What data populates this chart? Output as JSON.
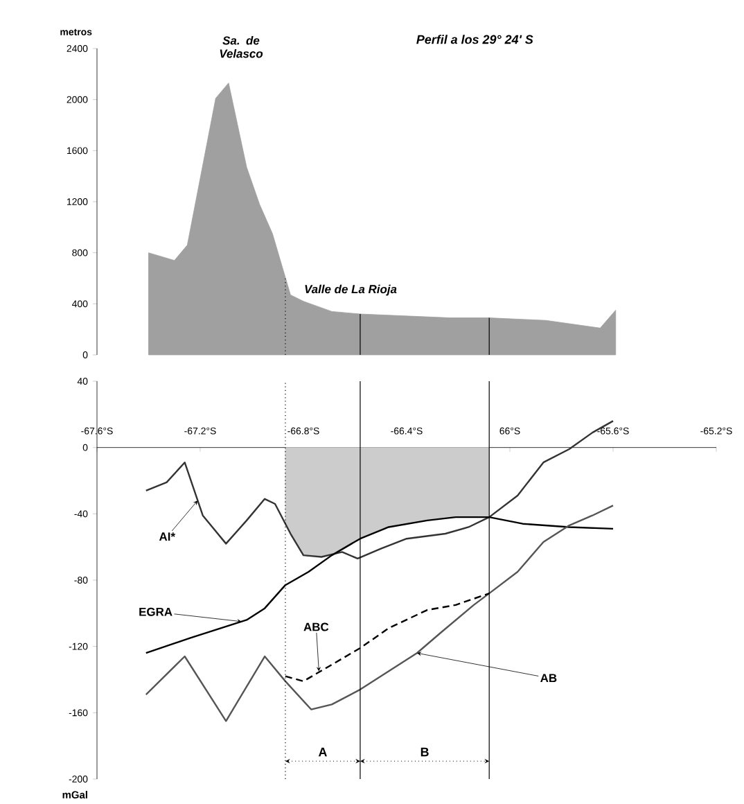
{
  "chart_data": [
    {
      "type": "area",
      "title": "Perfil a los 29° 24' S",
      "ylabel": "metros",
      "x": [
        -67.4,
        -67.3,
        -67.25,
        -67.14,
        -67.09,
        -67.02,
        -66.97,
        -66.92,
        -66.85,
        -66.8,
        -66.69,
        -66.58,
        -66.23,
        -66.08,
        -65.86,
        -65.65,
        -65.59
      ],
      "values": [
        800,
        740,
        860,
        2010,
        2130,
        1470,
        1180,
        950,
        470,
        420,
        340,
        320,
        290,
        290,
        270,
        210,
        350
      ],
      "color": "#a0a0a0",
      "xlim": [
        -67.6,
        -65.2
      ],
      "ylim": [
        0,
        2400
      ],
      "yticks": [
        0,
        400,
        800,
        1200,
        1600,
        2000,
        2400
      ],
      "tick_labels": "y",
      "annotations": [
        {
          "text": "Sa. de Velasco",
          "x": -67.09,
          "y": 2130
        },
        {
          "text": "Valle de La Rioja",
          "x": -66.8,
          "y": 420
        }
      ],
      "ref_lines": [
        {
          "axis": "x",
          "value": -66.87,
          "line_style": "dotted"
        },
        {
          "axis": "x",
          "value": -66.58,
          "line_style": "solid"
        },
        {
          "axis": "x",
          "value": -66.08,
          "line_style": "solid"
        }
      ]
    },
    {
      "type": "line",
      "ylabel": "mGal",
      "xlim": [
        -67.6,
        -65.2
      ],
      "ylim": [
        -200,
        40
      ],
      "xticks": [
        {
          "value": -67.6,
          "label": "-67.6°S"
        },
        {
          "value": -67.2,
          "label": "-67.2°S"
        },
        {
          "value": -66.8,
          "label": "-66.8°S"
        },
        {
          "value": -66.4,
          "label": "-66.4°S"
        },
        {
          "value": -66,
          "label": "66°S"
        },
        {
          "value": -65.6,
          "label": "-65.6°S"
        },
        {
          "value": -65.2,
          "label": "-65.2°S"
        }
      ],
      "yticks": [
        40,
        0,
        -40,
        -80,
        -120,
        -160,
        -200
      ],
      "series": [
        {
          "type": "area",
          "color": "#cccccc",
          "x": [
            -66.87,
            -66.8,
            -66.73,
            -66.69,
            -66.65,
            -66.58,
            -66.47,
            -66.32,
            -66.21,
            -66.08
          ],
          "values": [
            -46,
            -65,
            -66,
            -64,
            -61,
            -55,
            -48,
            -44,
            -42,
            -42
          ]
        },
        {
          "type": "line",
          "color": "#333333",
          "x": [
            -67.41,
            -67.33,
            -67.26,
            -67.19,
            -67.1,
            -67.02,
            -66.95,
            -66.91,
            -66.85,
            -66.8,
            -66.73,
            -66.65,
            -66.59,
            -66.5,
            -66.4,
            -66.25,
            -66.16,
            -66.08,
            -65.97,
            -65.87,
            -65.77,
            -65.68,
            -65.6
          ],
          "values": [
            -26,
            -21,
            -9,
            -41,
            -58,
            -44,
            -31,
            -34,
            -52,
            -65,
            -66,
            -63,
            -67,
            -61,
            -55,
            -52,
            -48,
            -42,
            -29,
            -9,
            -1,
            9,
            16
          ]
        },
        {
          "type": "line",
          "color": "#000000",
          "x": [
            -67.41,
            -67.24,
            -67.02,
            -66.95,
            -66.87,
            -66.78,
            -66.69,
            -66.58,
            -66.47,
            -66.32,
            -66.21,
            -66.08,
            -65.95,
            -65.77,
            -65.6
          ],
          "values": [
            -124,
            -115,
            -104,
            -97,
            -83,
            -75,
            -65,
            -55,
            -48,
            -44,
            -42,
            -42,
            -46,
            -48,
            -49
          ]
        },
        {
          "type": "line",
          "color": "#555555",
          "x": [
            -67.41,
            -67.26,
            -67.1,
            -66.95,
            -66.87,
            -66.77,
            -66.69,
            -66.58,
            -66.47,
            -66.36,
            -66.27,
            -66.14,
            -66.08,
            -65.97,
            -65.87,
            -65.77,
            -65.68,
            -65.6
          ],
          "values": [
            -149,
            -126,
            -165,
            -126,
            -141,
            -158,
            -155,
            -146,
            -135,
            -124,
            -112,
            -95,
            -88,
            -75,
            -57,
            -47,
            -41,
            -35
          ]
        },
        {
          "type": "line",
          "color": "#000000",
          "line_style": "dashed",
          "x": [
            -66.87,
            -66.8,
            -66.69,
            -66.58,
            -66.47,
            -66.32,
            -66.21,
            -66.08
          ],
          "values": [
            -138,
            -141,
            -131,
            -121,
            -109,
            -98,
            -95,
            -88
          ]
        }
      ],
      "annotations": [
        {
          "text": "AI*",
          "x": -67.21,
          "y": -32
        },
        {
          "text": "EGRA",
          "x": -67.04,
          "y": -105
        },
        {
          "text": "ABC",
          "x": -66.74,
          "y": -135
        },
        {
          "text": "AB",
          "x": -66.36,
          "y": -124
        },
        "A",
        "B"
      ],
      "ref_lines": [
        {
          "axis": "x",
          "value": -66.87,
          "line_style": "dotted"
        },
        {
          "axis": "x",
          "value": -66.58,
          "line_style": "solid"
        },
        {
          "axis": "x",
          "value": -66.08,
          "line_style": "solid"
        }
      ]
    }
  ]
}
